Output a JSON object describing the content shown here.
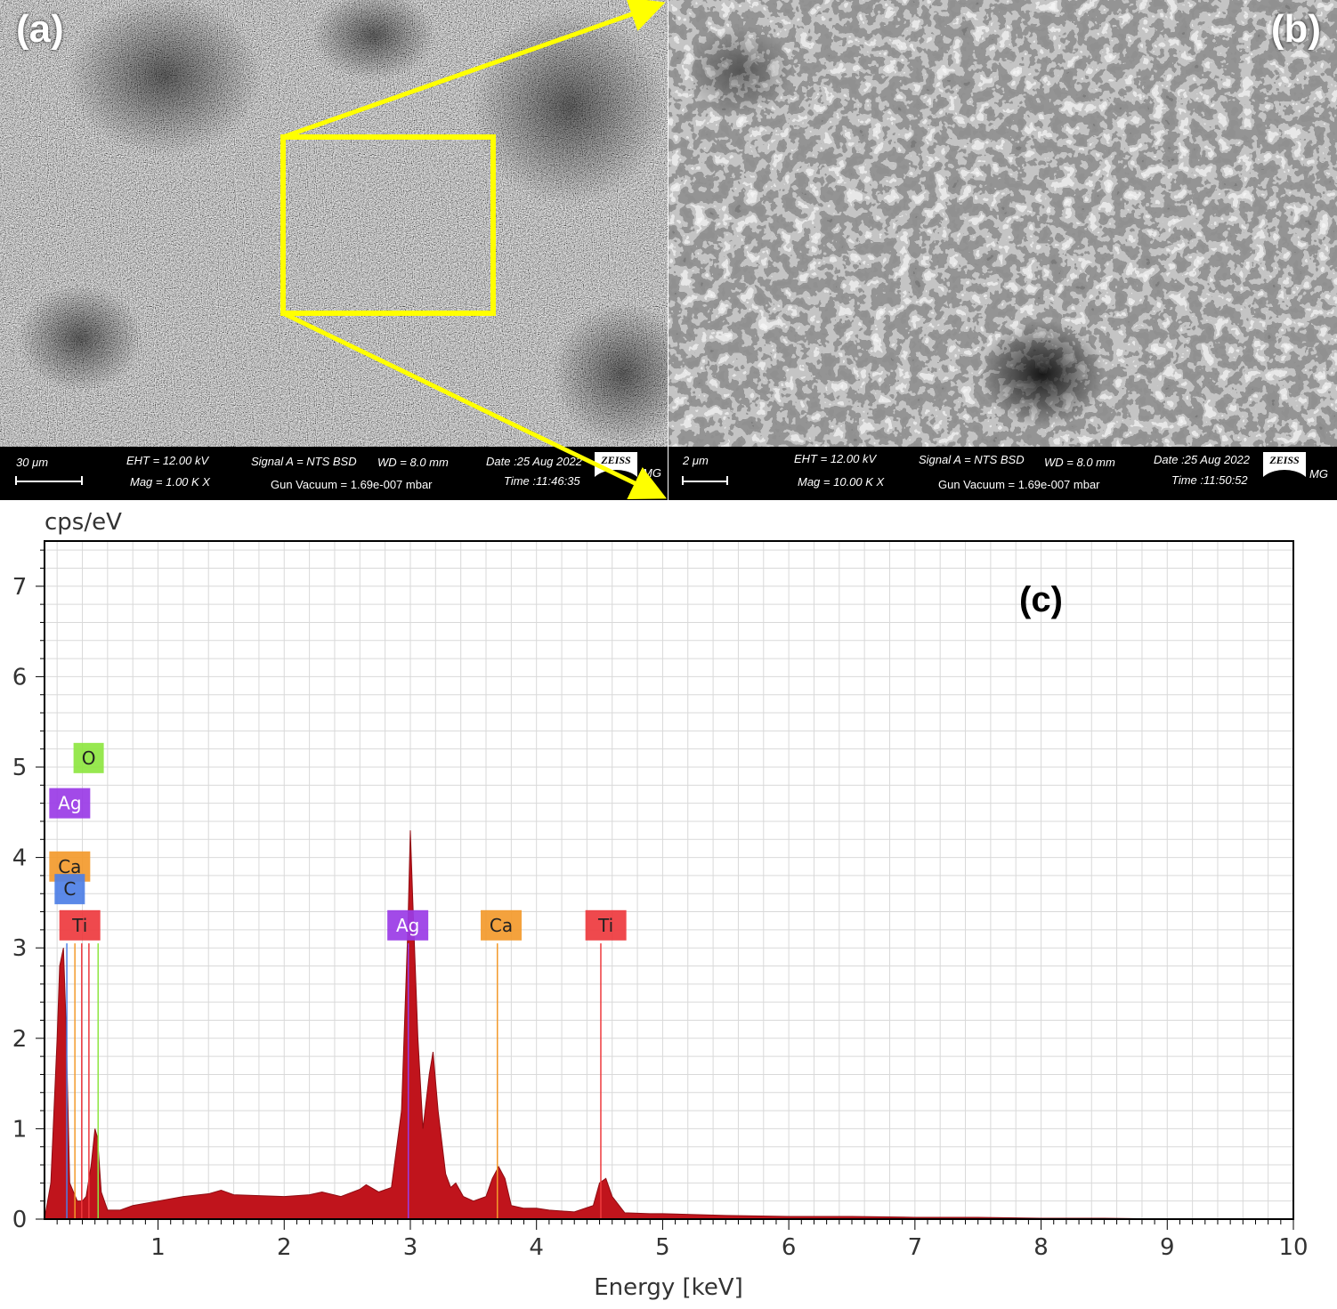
{
  "panels": {
    "a": {
      "label": "(a)",
      "scale": "30 μm",
      "eht": "EHT = 12.00 kV",
      "mag": "Mag =    1.00 K X",
      "signal": "Signal A = NTS BSD",
      "wd": "WD =  8.0 mm",
      "gun": "Gun Vacuum = 1.69e-007 mbar",
      "date": "Date :25 Aug 2022",
      "time": "Time :11:46:35",
      "brand": "ZEISS",
      "mg": "MG"
    },
    "b": {
      "label": "(b)",
      "scale": "2 μm",
      "eht": "EHT = 12.00 kV",
      "mag": "Mag =   10.00 K X",
      "signal": "Signal A = NTS BSD",
      "wd": "WD =  8.0 mm",
      "gun": "Gun Vacuum = 1.69e-007 mbar",
      "date": "Date :25 Aug 2022",
      "time": "Time :11:50:52",
      "brand": "ZEISS",
      "mg": "MG"
    }
  },
  "colors": {
    "highlight": "#ffff00",
    "spectrum_fill": "#c0141c",
    "O": "#8ee641",
    "Ag": "#9a3be6",
    "Ca": "#f39a2c",
    "Ti": "#ee3a3e",
    "C": "#4d7fe6"
  },
  "chart_data": {
    "type": "area",
    "title": "(c)",
    "ylabel": "cps/eV",
    "xlabel": "Energy [keV]",
    "xlim": [
      0.1,
      10
    ],
    "ylim": [
      0,
      7.5
    ],
    "x_ticks": [
      1,
      2,
      3,
      4,
      5,
      6,
      7,
      8,
      9,
      10
    ],
    "y_ticks": [
      0,
      1,
      2,
      3,
      4,
      5,
      6,
      7
    ],
    "grid": true,
    "series": [
      {
        "x": [
          0.1,
          0.15,
          0.2,
          0.22,
          0.25,
          0.27,
          0.3,
          0.33,
          0.36,
          0.4,
          0.43,
          0.47,
          0.5,
          0.52,
          0.55,
          0.6,
          0.7,
          0.8,
          1.0,
          1.2,
          1.4,
          1.5,
          1.6,
          1.8,
          2.0,
          2.2,
          2.3,
          2.45,
          2.6,
          2.65,
          2.75,
          2.85,
          2.93,
          2.98,
          3.0,
          3.02,
          3.06,
          3.1,
          3.15,
          3.18,
          3.22,
          3.28,
          3.32,
          3.36,
          3.42,
          3.5,
          3.6,
          3.65,
          3.7,
          3.75,
          3.8,
          3.9,
          4.0,
          4.1,
          4.3,
          4.45,
          4.5,
          4.55,
          4.6,
          4.7,
          4.9,
          5.0,
          5.5,
          6.0,
          6.5,
          7.0,
          7.5,
          8.0,
          8.5,
          9.0,
          9.5,
          10.0
        ],
        "y": [
          0.0,
          0.4,
          2.0,
          2.8,
          3.0,
          2.2,
          0.4,
          0.3,
          0.2,
          0.2,
          0.25,
          0.6,
          1.0,
          0.9,
          0.3,
          0.1,
          0.1,
          0.15,
          0.2,
          0.25,
          0.28,
          0.32,
          0.27,
          0.26,
          0.25,
          0.27,
          0.3,
          0.25,
          0.33,
          0.38,
          0.3,
          0.35,
          1.2,
          3.2,
          4.3,
          3.5,
          2.0,
          1.0,
          1.6,
          1.85,
          1.2,
          0.5,
          0.35,
          0.4,
          0.25,
          0.2,
          0.25,
          0.45,
          0.58,
          0.45,
          0.15,
          0.12,
          0.12,
          0.1,
          0.08,
          0.15,
          0.4,
          0.45,
          0.25,
          0.07,
          0.06,
          0.06,
          0.04,
          0.03,
          0.03,
          0.02,
          0.02,
          0.01,
          0.01,
          0.0,
          0.0,
          0.0
        ]
      }
    ],
    "element_lines": [
      {
        "element": "C",
        "x": 0.277
      },
      {
        "element": "Ca",
        "x": 0.341
      },
      {
        "element": "Ti",
        "x": 0.395
      },
      {
        "element": "Ti",
        "x": 0.452
      },
      {
        "element": "O",
        "x": 0.525
      },
      {
        "element": "Ag",
        "x": 2.984
      },
      {
        "element": "Ca",
        "x": 3.69
      },
      {
        "element": "Ti",
        "x": 4.51
      }
    ],
    "annotations": [
      {
        "text": "O",
        "element": "O",
        "x": 0.45,
        "y": 5.1
      },
      {
        "text": "Ag",
        "element": "Ag",
        "x": 0.3,
        "y": 4.6
      },
      {
        "text": "Ca",
        "element": "Ca",
        "x": 0.3,
        "y": 3.9
      },
      {
        "text": "C",
        "element": "C",
        "x": 0.3,
        "y": 3.65
      },
      {
        "text": "Ti",
        "element": "Ti",
        "x": 0.38,
        "y": 3.25
      },
      {
        "text": "Ag",
        "element": "Ag",
        "x": 2.98,
        "y": 3.25
      },
      {
        "text": "Ca",
        "element": "Ca",
        "x": 3.72,
        "y": 3.25
      },
      {
        "text": "Ti",
        "element": "Ti",
        "x": 4.55,
        "y": 3.25
      }
    ]
  }
}
